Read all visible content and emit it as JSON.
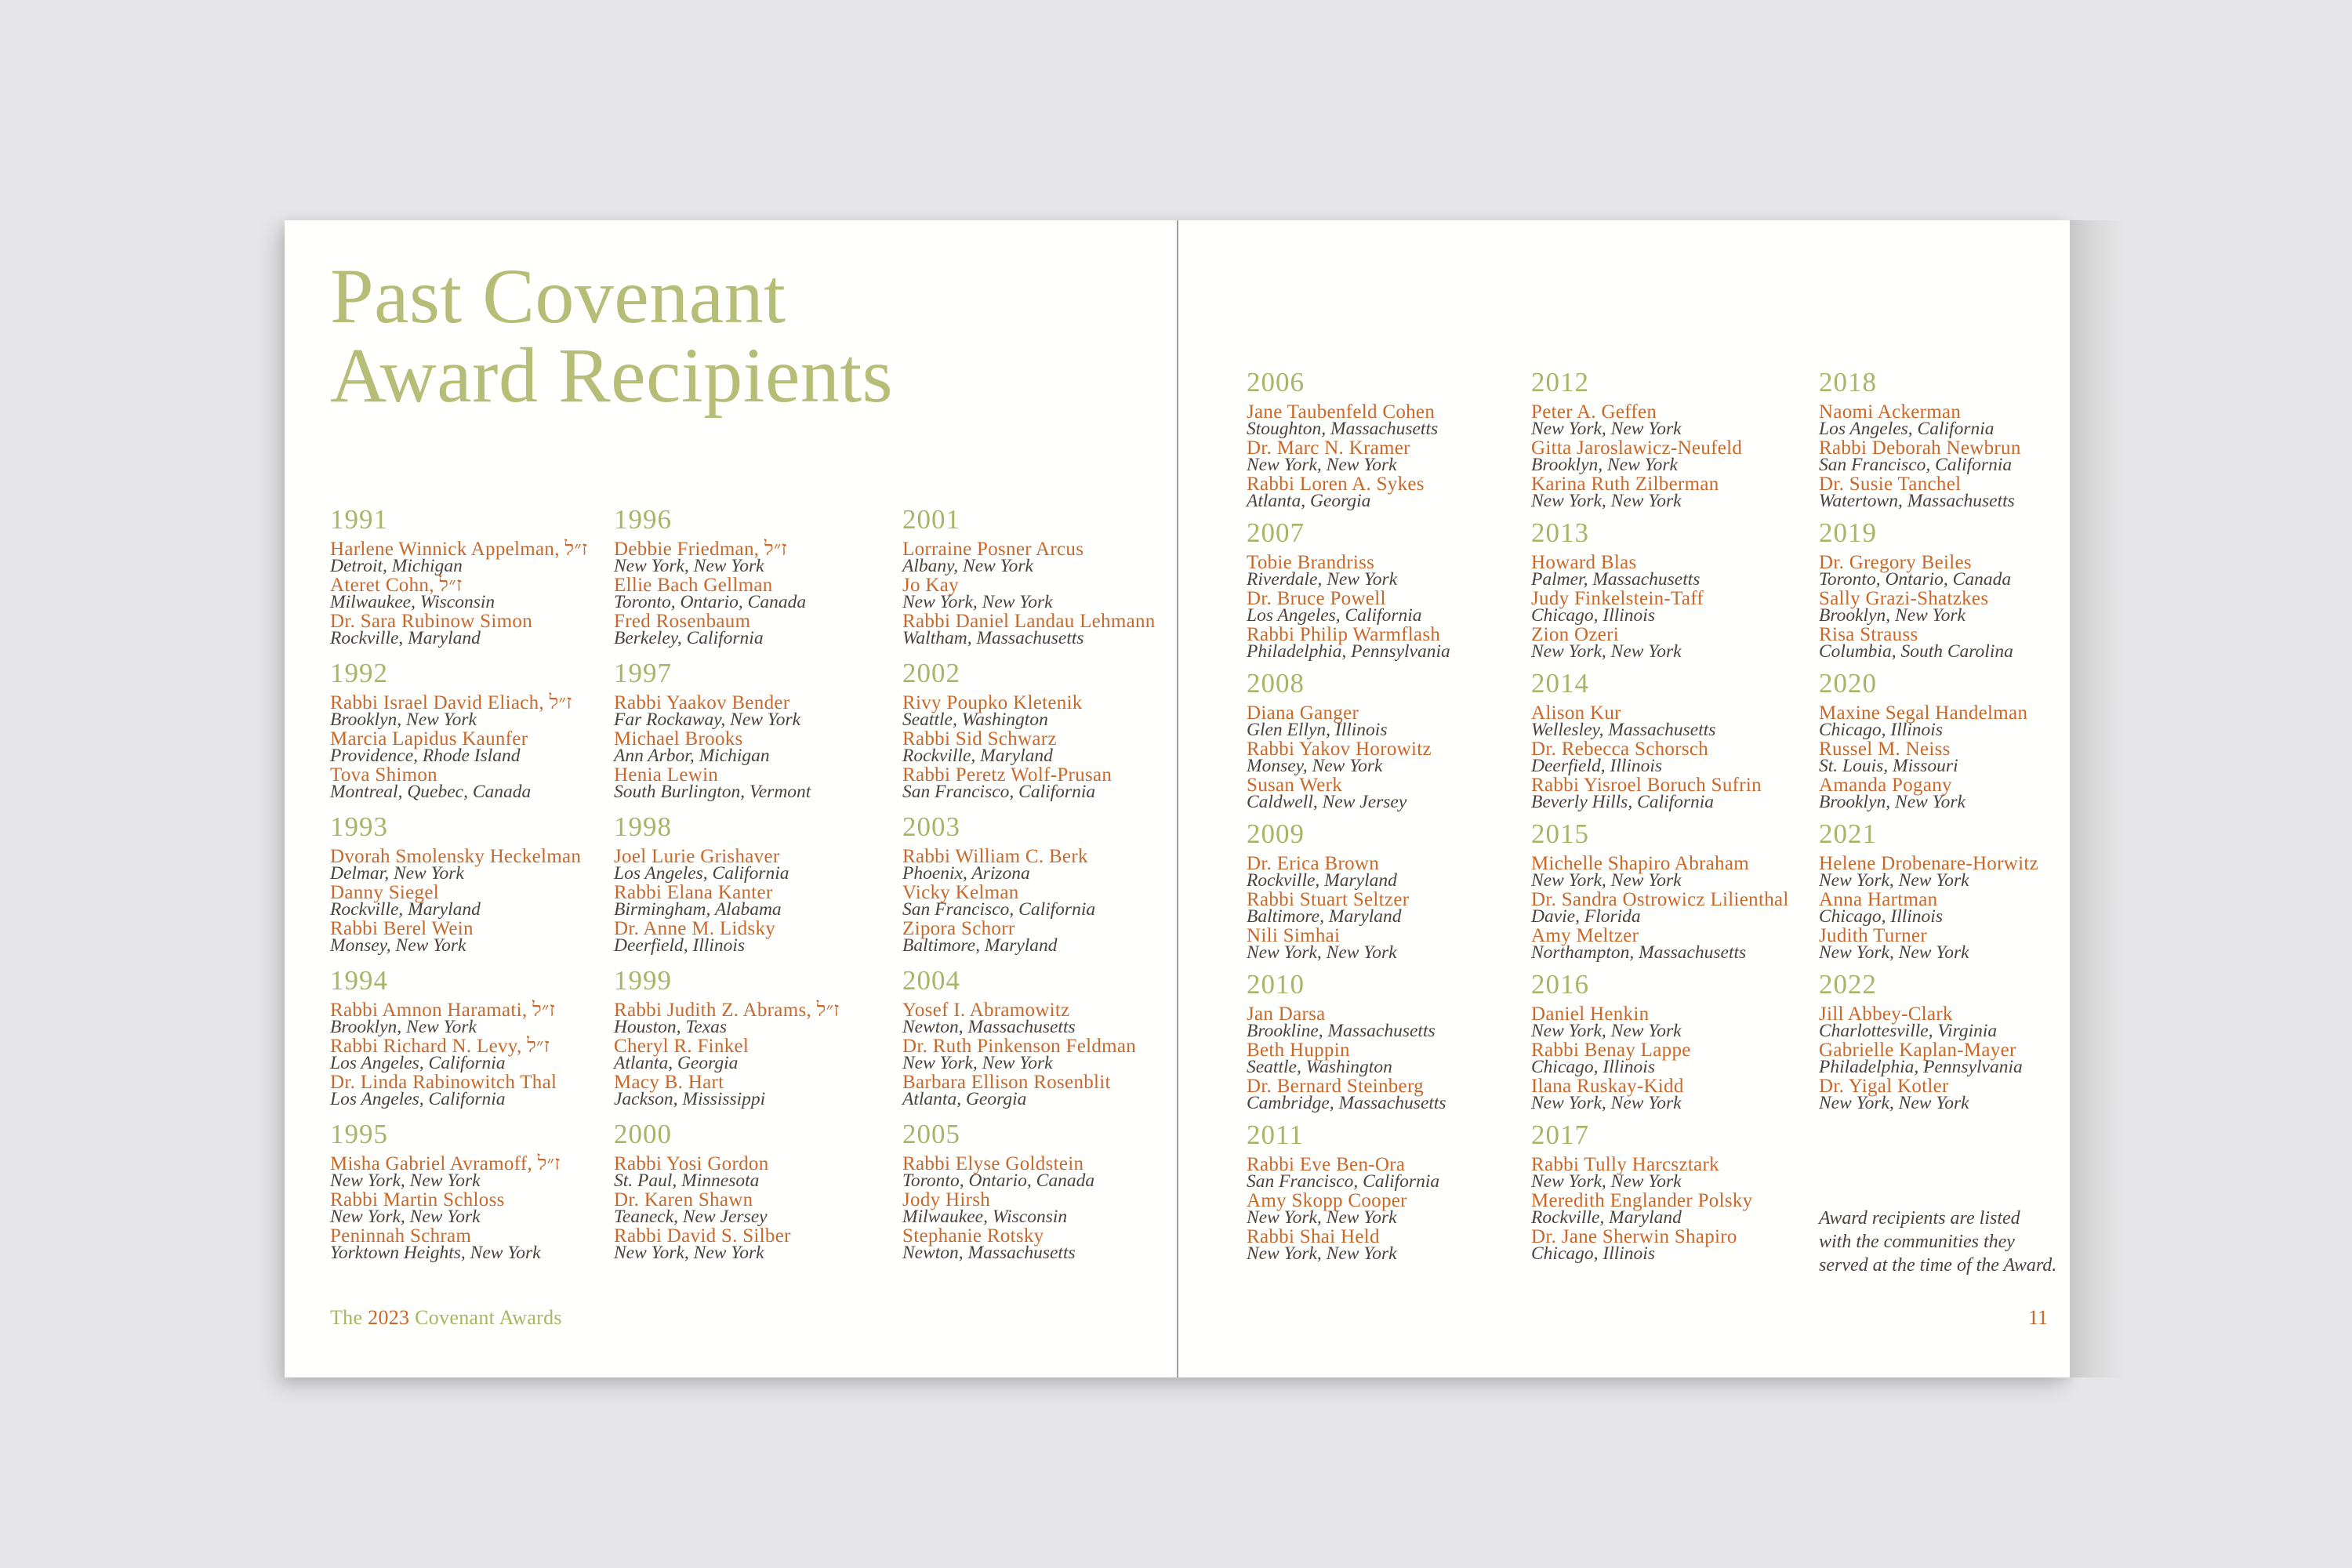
{
  "document": {
    "title_lines": [
      "Past Covenant",
      "Award Recipients"
    ],
    "footer": {
      "prefix": "The",
      "year": "2023",
      "suffix": "Covenant Awards"
    },
    "page_number": "11",
    "note_lines": [
      "Award recipients are listed",
      "with the communities they",
      "served at the time of the Award."
    ]
  },
  "colors": {
    "page_background": "#e6e6e8",
    "paper": "#fffffe",
    "olive_title": "#b6bd77",
    "olive_year": "#a9b465",
    "orange": "#c8682a",
    "location_text": "#4c423c"
  },
  "recipients": {
    "left_page_columns": [
      [
        {
          "year": "1991",
          "entries": [
            {
              "name": "Harlene Winnick Appelman, ז״ל",
              "location": "Detroit, Michigan"
            },
            {
              "name": "Ateret Cohn, ז״ל",
              "location": "Milwaukee, Wisconsin"
            },
            {
              "name": "Dr. Sara Rubinow Simon",
              "location": "Rockville, Maryland"
            }
          ]
        },
        {
          "year": "1992",
          "entries": [
            {
              "name": "Rabbi Israel David Eliach, ז״ל",
              "location": "Brooklyn, New York"
            },
            {
              "name": "Marcia Lapidus Kaunfer",
              "location": "Providence, Rhode Island"
            },
            {
              "name": "Tova Shimon",
              "location": "Montreal, Quebec, Canada"
            }
          ]
        },
        {
          "year": "1993",
          "entries": [
            {
              "name": "Dvorah Smolensky Heckelman",
              "location": "Delmar, New York"
            },
            {
              "name": "Danny Siegel",
              "location": "Rockville, Maryland"
            },
            {
              "name": "Rabbi Berel Wein",
              "location": "Monsey, New York"
            }
          ]
        },
        {
          "year": "1994",
          "entries": [
            {
              "name": "Rabbi Amnon Haramati, ז״ל",
              "location": "Brooklyn, New York"
            },
            {
              "name": "Rabbi Richard N. Levy, ז״ל",
              "location": "Los Angeles, California"
            },
            {
              "name": "Dr. Linda Rabinowitch Thal",
              "location": "Los Angeles, California"
            }
          ]
        },
        {
          "year": "1995",
          "entries": [
            {
              "name": "Misha Gabriel Avramoff, ז״ל",
              "location": "New York, New York"
            },
            {
              "name": "Rabbi Martin Schloss",
              "location": "New York, New York"
            },
            {
              "name": "Peninnah Schram",
              "location": "Yorktown Heights, New York"
            }
          ]
        }
      ],
      [
        {
          "year": "1996",
          "entries": [
            {
              "name": "Debbie Friedman, ז״ל",
              "location": "New York, New York"
            },
            {
              "name": "Ellie Bach Gellman",
              "location": "Toronto, Ontario, Canada"
            },
            {
              "name": "Fred Rosenbaum",
              "location": "Berkeley, California"
            }
          ]
        },
        {
          "year": "1997",
          "entries": [
            {
              "name": "Rabbi Yaakov Bender",
              "location": "Far Rockaway, New York"
            },
            {
              "name": "Michael Brooks",
              "location": "Ann Arbor, Michigan"
            },
            {
              "name": "Henia Lewin",
              "location": "South Burlington, Vermont"
            }
          ]
        },
        {
          "year": "1998",
          "entries": [
            {
              "name": "Joel Lurie Grishaver",
              "location": "Los Angeles, California"
            },
            {
              "name": "Rabbi Elana Kanter",
              "location": "Birmingham, Alabama"
            },
            {
              "name": "Dr. Anne M. Lidsky",
              "location": "Deerfield, Illinois"
            }
          ]
        },
        {
          "year": "1999",
          "entries": [
            {
              "name": "Rabbi Judith Z. Abrams, ז״ל",
              "location": "Houston, Texas"
            },
            {
              "name": "Cheryl R. Finkel",
              "location": "Atlanta, Georgia"
            },
            {
              "name": "Macy B. Hart",
              "location": "Jackson, Mississippi"
            }
          ]
        },
        {
          "year": "2000",
          "entries": [
            {
              "name": "Rabbi Yosi Gordon",
              "location": "St. Paul, Minnesota"
            },
            {
              "name": "Dr. Karen Shawn",
              "location": "Teaneck, New Jersey"
            },
            {
              "name": "Rabbi David S. Silber",
              "location": "New York, New York"
            }
          ]
        }
      ],
      [
        {
          "year": "2001",
          "entries": [
            {
              "name": "Lorraine Posner Arcus",
              "location": "Albany, New York"
            },
            {
              "name": "Jo Kay",
              "location": "New York, New York"
            },
            {
              "name": "Rabbi Daniel Landau Lehmann",
              "location": "Waltham, Massachusetts"
            }
          ]
        },
        {
          "year": "2002",
          "entries": [
            {
              "name": "Rivy Poupko Kletenik",
              "location": "Seattle, Washington"
            },
            {
              "name": "Rabbi Sid Schwarz",
              "location": "Rockville, Maryland"
            },
            {
              "name": "Rabbi Peretz Wolf-Prusan",
              "location": "San Francisco, California"
            }
          ]
        },
        {
          "year": "2003",
          "entries": [
            {
              "name": "Rabbi William C. Berk",
              "location": "Phoenix, Arizona"
            },
            {
              "name": "Vicky Kelman",
              "location": "San Francisco, California"
            },
            {
              "name": "Zipora Schorr",
              "location": "Baltimore, Maryland"
            }
          ]
        },
        {
          "year": "2004",
          "entries": [
            {
              "name": "Yosef I. Abramowitz",
              "location": "Newton, Massachusetts"
            },
            {
              "name": "Dr. Ruth Pinkenson Feldman",
              "location": "New York, New York"
            },
            {
              "name": "Barbara Ellison Rosenblit",
              "location": "Atlanta, Georgia"
            }
          ]
        },
        {
          "year": "2005",
          "entries": [
            {
              "name": "Rabbi Elyse Goldstein",
              "location": "Toronto, Ontario, Canada"
            },
            {
              "name": "Jody Hirsh",
              "location": "Milwaukee, Wisconsin"
            },
            {
              "name": "Stephanie Rotsky",
              "location": "Newton, Massachusetts"
            }
          ]
        }
      ]
    ],
    "right_page_columns": [
      [
        {
          "year": "2006",
          "entries": [
            {
              "name": "Jane Taubenfeld Cohen",
              "location": "Stoughton, Massachusetts"
            },
            {
              "name": "Dr. Marc N. Kramer",
              "location": "New York, New York"
            },
            {
              "name": "Rabbi Loren A. Sykes",
              "location": "Atlanta, Georgia"
            }
          ]
        },
        {
          "year": "2007",
          "entries": [
            {
              "name": "Tobie Brandriss",
              "location": "Riverdale, New York"
            },
            {
              "name": "Dr. Bruce Powell",
              "location": "Los Angeles, California"
            },
            {
              "name": "Rabbi Philip Warmflash",
              "location": "Philadelphia, Pennsylvania"
            }
          ]
        },
        {
          "year": "2008",
          "entries": [
            {
              "name": "Diana Ganger",
              "location": "Glen Ellyn, Illinois"
            },
            {
              "name": "Rabbi Yakov Horowitz",
              "location": "Monsey, New York"
            },
            {
              "name": "Susan Werk",
              "location": "Caldwell, New Jersey"
            }
          ]
        },
        {
          "year": "2009",
          "entries": [
            {
              "name": "Dr. Erica Brown",
              "location": "Rockville, Maryland"
            },
            {
              "name": "Rabbi Stuart Seltzer",
              "location": "Baltimore, Maryland"
            },
            {
              "name": "Nili Simhai",
              "location": "New York, New York"
            }
          ]
        },
        {
          "year": "2010",
          "entries": [
            {
              "name": "Jan Darsa",
              "location": "Brookline, Massachusetts"
            },
            {
              "name": "Beth Huppin",
              "location": "Seattle, Washington"
            },
            {
              "name": "Dr. Bernard Steinberg",
              "location": "Cambridge, Massachusetts"
            }
          ]
        },
        {
          "year": "2011",
          "entries": [
            {
              "name": "Rabbi Eve Ben-Ora",
              "location": "San Francisco, California"
            },
            {
              "name": "Amy Skopp Cooper",
              "location": "New York, New York"
            },
            {
              "name": "Rabbi Shai Held",
              "location": "New York, New York"
            }
          ]
        }
      ],
      [
        {
          "year": "2012",
          "entries": [
            {
              "name": "Peter A. Geffen",
              "location": "New York, New York"
            },
            {
              "name": "Gitta Jaroslawicz-Neufeld",
              "location": "Brooklyn, New York"
            },
            {
              "name": "Karina Ruth Zilberman",
              "location": "New York, New York"
            }
          ]
        },
        {
          "year": "2013",
          "entries": [
            {
              "name": "Howard Blas",
              "location": "Palmer, Massachusetts"
            },
            {
              "name": "Judy Finkelstein-Taff",
              "location": "Chicago, Illinois"
            },
            {
              "name": "Zion Ozeri",
              "location": "New York, New York"
            }
          ]
        },
        {
          "year": "2014",
          "entries": [
            {
              "name": "Alison Kur",
              "location": "Wellesley, Massachusetts"
            },
            {
              "name": "Dr. Rebecca Schorsch",
              "location": "Deerfield, Illinois"
            },
            {
              "name": "Rabbi Yisroel Boruch Sufrin",
              "location": "Beverly Hills, California"
            }
          ]
        },
        {
          "year": "2015",
          "entries": [
            {
              "name": "Michelle Shapiro Abraham",
              "location": "New York, New York"
            },
            {
              "name": "Dr. Sandra Ostrowicz Lilienthal",
              "location": "Davie, Florida"
            },
            {
              "name": "Amy Meltzer",
              "location": "Northampton, Massachusetts"
            }
          ]
        },
        {
          "year": "2016",
          "entries": [
            {
              "name": "Daniel Henkin",
              "location": "New York, New York"
            },
            {
              "name": "Rabbi Benay Lappe",
              "location": "Chicago, Illinois"
            },
            {
              "name": "Ilana Ruskay-Kidd",
              "location": "New York, New York"
            }
          ]
        },
        {
          "year": "2017",
          "entries": [
            {
              "name": "Rabbi Tully Harcsztark",
              "location": "New York, New York"
            },
            {
              "name": "Meredith Englander Polsky",
              "location": "Rockville, Maryland"
            },
            {
              "name": "Dr. Jane Sherwin Shapiro",
              "location": "Chicago, Illinois"
            }
          ]
        }
      ],
      [
        {
          "year": "2018",
          "entries": [
            {
              "name": "Naomi Ackerman",
              "location": "Los Angeles, California"
            },
            {
              "name": "Rabbi Deborah Newbrun",
              "location": "San Francisco, California"
            },
            {
              "name": "Dr. Susie Tanchel",
              "location": "Watertown, Massachusetts"
            }
          ]
        },
        {
          "year": "2019",
          "entries": [
            {
              "name": "Dr. Gregory Beiles",
              "location": "Toronto, Ontario, Canada"
            },
            {
              "name": "Sally Grazi-Shatzkes",
              "location": "Brooklyn, New York"
            },
            {
              "name": "Risa Strauss",
              "location": "Columbia, South Carolina"
            }
          ]
        },
        {
          "year": "2020",
          "entries": [
            {
              "name": "Maxine Segal Handelman",
              "location": "Chicago, Illinois"
            },
            {
              "name": "Russel M. Neiss",
              "location": "St. Louis, Missouri"
            },
            {
              "name": "Amanda Pogany",
              "location": "Brooklyn, New York"
            }
          ]
        },
        {
          "year": "2021",
          "entries": [
            {
              "name": "Helene Drobenare-Horwitz",
              "location": "New York, New York"
            },
            {
              "name": "Anna Hartman",
              "location": "Chicago, Illinois"
            },
            {
              "name": "Judith Turner",
              "location": "New York, New York"
            }
          ]
        },
        {
          "year": "2022",
          "entries": [
            {
              "name": "Jill Abbey-Clark",
              "location": "Charlottesville, Virginia"
            },
            {
              "name": "Gabrielle Kaplan-Mayer",
              "location": "Philadelphia, Pennsylvania"
            },
            {
              "name": "Dr. Yigal Kotler",
              "location": "New York, New York"
            }
          ]
        }
      ]
    ]
  }
}
